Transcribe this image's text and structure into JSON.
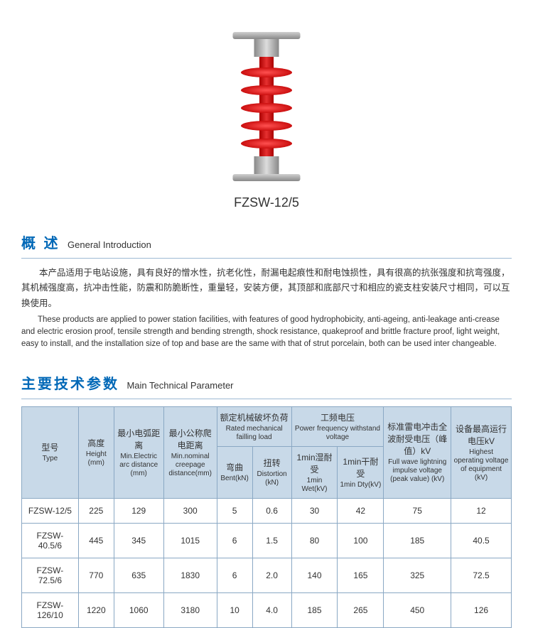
{
  "product_label": "FZSW-12/5",
  "sections": {
    "intro": {
      "cn": "概 述",
      "en": "General Introduction"
    },
    "params": {
      "cn": "主要技术参数",
      "en": "Main Technical Parameter"
    }
  },
  "description": {
    "cn": "本产品适用于电站设施，具有良好的憎水性，抗老化性，耐漏电起痕性和耐电蚀损性，具有很高的抗张强度和抗弯强度，其机械强度高，抗冲击性能，防震和防脆断性，重量轻，安装方便，其顶部和底部尺寸和相应的瓷支柱安装尺寸相同，可以互换使用。",
    "en": "These products are applied to power station facilities, with features of good hydrophobicity, anti-ageing, anti-leakage anti-crease and electric erosion proof, tensile strength and bending strength, shock resistance, quakeproof and brittle fracture proof, light weight, easy to install, and the installation size of top and base are the same with that of strut porcelain, both can be used inter changeable."
  },
  "table": {
    "columns": {
      "type": {
        "cn": "型号",
        "en": "Type"
      },
      "height": {
        "cn": "高度",
        "en": "Height (mm)"
      },
      "arc": {
        "cn": "最小电弧距离",
        "en": "Min.Electric arc distance (mm)"
      },
      "creep": {
        "cn": "最小公称爬电距离",
        "en": "Min.nominal creepage distance(mm)"
      },
      "rated_group": {
        "cn": "额定机械破坏负荷",
        "en": "Rated mechanical failling load"
      },
      "bent": {
        "cn": "弯曲",
        "en": "Bent(kN)"
      },
      "distortion": {
        "cn": "扭转",
        "en": "Distortion (kN)"
      },
      "pf_group": {
        "cn": "工频电压",
        "en": "Power frequency withstand voltage"
      },
      "wet": {
        "cn": "1min湿耐受",
        "en": "1min Wet(kV)"
      },
      "dry": {
        "cn": "1min干耐受",
        "en": "1min Dty(kV)"
      },
      "impulse": {
        "cn": "标准雷电冲击全波耐受电压（峰值）kV",
        "en": "Full wave lightning impulse voltage (peak value) (kV)"
      },
      "highest": {
        "cn": "设备最高运行电压kV",
        "en": "Highest operating voltage of equipment (kV)"
      }
    },
    "rows": [
      {
        "type": "FZSW-12/5",
        "height": "225",
        "arc": "129",
        "creep": "300",
        "bent": "5",
        "distortion": "0.6",
        "wet": "30",
        "dry": "42",
        "impulse": "75",
        "highest": "12"
      },
      {
        "type": "FZSW-40.5/6",
        "height": "445",
        "arc": "345",
        "creep": "1015",
        "bent": "6",
        "distortion": "1.5",
        "wet": "80",
        "dry": "100",
        "impulse": "185",
        "highest": "40.5"
      },
      {
        "type": "FZSW-72.5/6",
        "height": "770",
        "arc": "635",
        "creep": "1830",
        "bent": "6",
        "distortion": "2.0",
        "wet": "140",
        "dry": "165",
        "impulse": "325",
        "highest": "72.5"
      },
      {
        "type": "FZSW-126/10",
        "height": "1220",
        "arc": "1060",
        "creep": "3180",
        "bent": "10",
        "distortion": "4.0",
        "wet": "185",
        "dry": "265",
        "impulse": "450",
        "highest": "126"
      }
    ]
  },
  "colors": {
    "title_blue": "#0068b7",
    "header_bg": "#c8d9e8",
    "border": "#8aa8c4",
    "insulator_red": "#cc1010"
  }
}
